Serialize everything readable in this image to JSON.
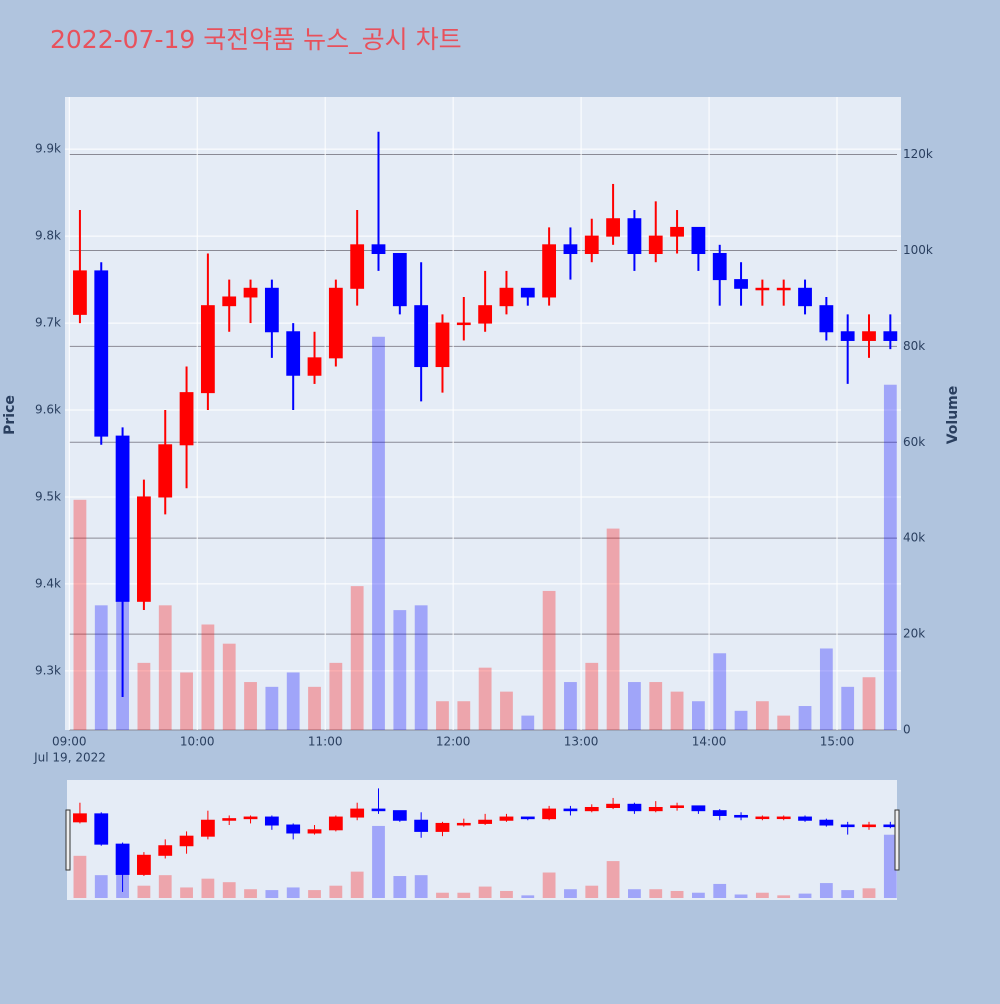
{
  "chart_data": {
    "type": "candlestick",
    "title": "2022-07-19 국전약품 뉴스_공시 차트",
    "y_title": "Price",
    "y2_title": "Volume",
    "x_date_label": "Jul 19, 2022",
    "increasing_color": "#ff0000",
    "decreasing_color": "#0000ff",
    "x": [
      "2022-07-19 09:00",
      "2022-07-19 09:10",
      "2022-07-19 09:20",
      "2022-07-19 09:30",
      "2022-07-19 09:40",
      "2022-07-19 09:50",
      "2022-07-19 10:00",
      "2022-07-19 10:10",
      "2022-07-19 10:20",
      "2022-07-19 10:30",
      "2022-07-19 10:40",
      "2022-07-19 10:50",
      "2022-07-19 11:00",
      "2022-07-19 11:10",
      "2022-07-19 11:20",
      "2022-07-19 11:30",
      "2022-07-19 11:40",
      "2022-07-19 11:50",
      "2022-07-19 12:00",
      "2022-07-19 12:10",
      "2022-07-19 12:20",
      "2022-07-19 12:30",
      "2022-07-19 12:40",
      "2022-07-19 12:50",
      "2022-07-19 13:00",
      "2022-07-19 13:10",
      "2022-07-19 13:20",
      "2022-07-19 13:30",
      "2022-07-19 13:40",
      "2022-07-19 13:50",
      "2022-07-19 14:00",
      "2022-07-19 14:10",
      "2022-07-19 14:20",
      "2022-07-19 14:30",
      "2022-07-19 14:40",
      "2022-07-19 14:50",
      "2022-07-19 15:00",
      "2022-07-19 15:10",
      "2022-07-19 15:20"
    ],
    "open": [
      9710,
      9760,
      9570,
      9380,
      9500,
      9560,
      9620,
      9720,
      9730,
      9740,
      9690,
      9640,
      9660,
      9740,
      9790,
      9780,
      9720,
      9650,
      9700,
      9700,
      9720,
      9740,
      9730,
      9790,
      9780,
      9800,
      9820,
      9780,
      9800,
      9810,
      9780,
      9750,
      9740,
      9740,
      9740,
      9720,
      9690,
      9680,
      9690
    ],
    "high": [
      9830,
      9770,
      9580,
      9520,
      9600,
      9650,
      9780,
      9750,
      9750,
      9750,
      9700,
      9690,
      9750,
      9830,
      9920,
      9780,
      9770,
      9710,
      9730,
      9760,
      9760,
      9740,
      9810,
      9810,
      9820,
      9860,
      9830,
      9840,
      9830,
      9810,
      9790,
      9770,
      9750,
      9750,
      9750,
      9730,
      9710,
      9710,
      9710
    ],
    "low": [
      9700,
      9560,
      9270,
      9370,
      9480,
      9510,
      9600,
      9690,
      9700,
      9660,
      9600,
      9630,
      9650,
      9720,
      9760,
      9710,
      9610,
      9620,
      9680,
      9690,
      9710,
      9720,
      9720,
      9750,
      9770,
      9790,
      9760,
      9770,
      9780,
      9760,
      9720,
      9720,
      9720,
      9720,
      9710,
      9680,
      9630,
      9660,
      9670
    ],
    "close": [
      9760,
      9570,
      9380,
      9500,
      9560,
      9620,
      9720,
      9730,
      9740,
      9690,
      9640,
      9660,
      9740,
      9790,
      9780,
      9720,
      9650,
      9700,
      9700,
      9720,
      9740,
      9730,
      9790,
      9780,
      9800,
      9820,
      9780,
      9800,
      9810,
      9780,
      9750,
      9740,
      9740,
      9740,
      9720,
      9690,
      9680,
      9690,
      9680
    ],
    "volume": [
      48000,
      26000,
      32000,
      14000,
      26000,
      12000,
      22000,
      18000,
      10000,
      9000,
      12000,
      9000,
      14000,
      30000,
      82000,
      25000,
      26000,
      6000,
      6000,
      13000,
      8000,
      3000,
      29000,
      10000,
      14000,
      42000,
      10000,
      10000,
      8000,
      6000,
      16000,
      4000,
      6000,
      3000,
      5000,
      17000,
      9000,
      11000,
      72000
    ],
    "xlim": [
      "2022-07-19 08:58",
      "2022-07-19 15:30"
    ],
    "xticks": [
      {
        "value": "2022-07-19 09:00",
        "label": "09:00"
      },
      {
        "value": "2022-07-19 10:00",
        "label": "10:00"
      },
      {
        "value": "2022-07-19 11:00",
        "label": "11:00"
      },
      {
        "value": "2022-07-19 12:00",
        "label": "12:00"
      },
      {
        "value": "2022-07-19 13:00",
        "label": "13:00"
      },
      {
        "value": "2022-07-19 14:00",
        "label": "14:00"
      },
      {
        "value": "2022-07-19 15:00",
        "label": "15:00"
      }
    ],
    "ylim": [
      9232,
      9960
    ],
    "yticks": [
      {
        "value": 9300,
        "label": "9.3k"
      },
      {
        "value": 9400,
        "label": "9.4k"
      },
      {
        "value": 9500,
        "label": "9.5k"
      },
      {
        "value": 9600,
        "label": "9.6k"
      },
      {
        "value": 9700,
        "label": "9.7k"
      },
      {
        "value": 9800,
        "label": "9.8k"
      },
      {
        "value": 9900,
        "label": "9.9k"
      }
    ],
    "y2lim": [
      0,
      132000
    ],
    "y2ticks": [
      0,
      {
        "value": 20000,
        "label": "20k"
      },
      {
        "value": 40000,
        "label": "40k"
      },
      {
        "value": 60000,
        "label": "60k"
      },
      {
        "value": 80000,
        "label": "80k"
      },
      {
        "value": 100000,
        "label": "100k"
      },
      {
        "value": 120000,
        "label": "120k"
      }
    ],
    "grid": true,
    "rangeslider": true
  }
}
